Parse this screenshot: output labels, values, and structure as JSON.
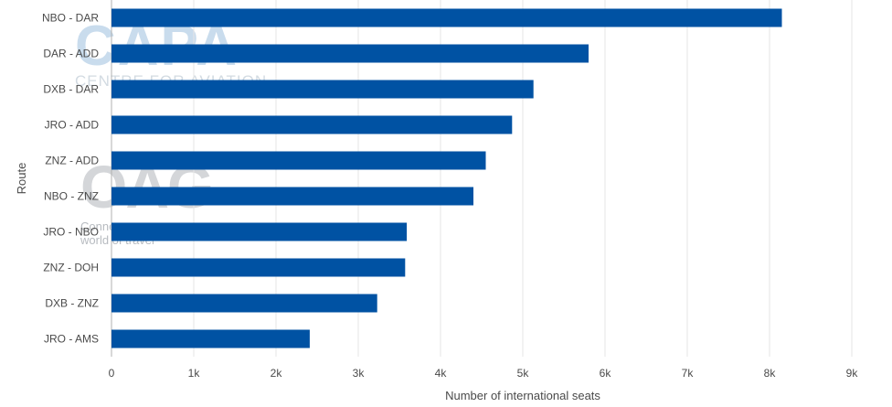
{
  "watermarks": {
    "capa_main": "CAPA",
    "capa_sub": "CENTRE FOR AVIATION",
    "oag_main": "OAG",
    "oag_sub1": "Conne",
    "oag_sub2": "world of travel"
  },
  "colors": {
    "bar": "#0052a3",
    "grid": "#e6e6e6",
    "axis": "#b0b0b0"
  },
  "chart_data": {
    "type": "bar",
    "orientation": "horizontal",
    "title": "",
    "xlabel": "Number of international seats",
    "ylabel": "Route",
    "categories": [
      "NBO - DAR",
      "DAR - ADD",
      "DXB - DAR",
      "JRO - ADD",
      "ZNZ - ADD",
      "NBO - ZNZ",
      "JRO - NBO",
      "ZNZ - DOH",
      "DXB - ZNZ",
      "JRO - AMS"
    ],
    "values": [
      8150,
      5800,
      5130,
      4870,
      4550,
      4400,
      3590,
      3570,
      3230,
      2410
    ],
    "xlim": [
      0,
      9000
    ],
    "xticks": [
      0,
      1000,
      2000,
      3000,
      4000,
      5000,
      6000,
      7000,
      8000,
      9000
    ],
    "xtick_labels": [
      "0",
      "1k",
      "2k",
      "3k",
      "4k",
      "5k",
      "6k",
      "7k",
      "8k",
      "9k"
    ],
    "grid": true,
    "legend": "none"
  }
}
